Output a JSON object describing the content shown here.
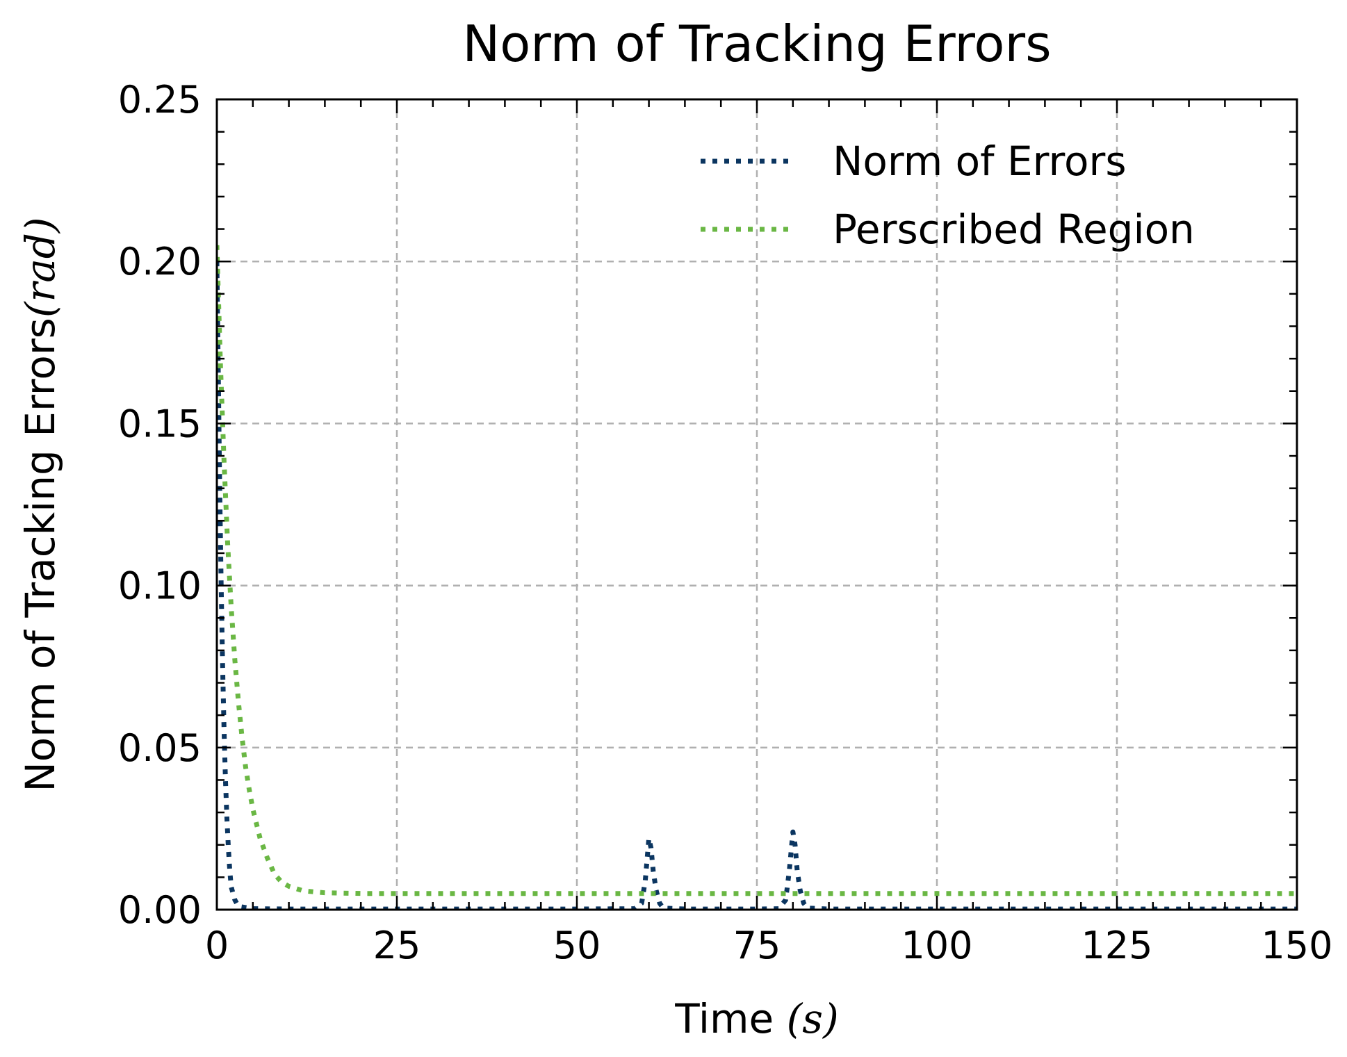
{
  "chart_data": {
    "type": "line",
    "title": "Norm of Tracking Errors",
    "xlabel_main": "Time ",
    "xlabel_math": "(s)",
    "ylabel_main": "Norm of Tracking Errors",
    "ylabel_math": "(rad)",
    "xlim": [
      0,
      150
    ],
    "ylim": [
      0,
      0.25
    ],
    "xticks": [
      0,
      25,
      50,
      75,
      100,
      125,
      150
    ],
    "xtick_labels": [
      "0",
      "25",
      "50",
      "75",
      "100",
      "125",
      "150"
    ],
    "yticks": [
      0,
      0.05,
      0.1,
      0.15,
      0.2,
      0.25
    ],
    "ytick_labels": [
      "0.00",
      "0.05",
      "0.10",
      "0.15",
      "0.20",
      "0.25"
    ],
    "grid": true,
    "legend_position": "top-right",
    "series": [
      {
        "name": "Norm of Errors",
        "color": "#0b3560",
        "style": "dotted",
        "x": [
          0,
          0.2,
          0.4,
          0.6,
          0.8,
          1.0,
          1.2,
          1.4,
          1.6,
          1.8,
          2.0,
          2.5,
          3,
          5,
          10,
          20,
          30,
          40,
          50,
          58,
          59,
          59.5,
          60,
          60.3,
          60.6,
          61,
          61.5,
          62,
          65,
          70,
          75,
          78,
          79,
          79.5,
          80,
          80.3,
          80.6,
          81,
          81.5,
          82,
          85,
          90,
          100,
          110,
          120,
          130,
          140,
          150
        ],
        "y": [
          0.2,
          0.165,
          0.13,
          0.1,
          0.075,
          0.055,
          0.04,
          0.028,
          0.019,
          0.012,
          0.007,
          0.003,
          0.001,
          0.0003,
          0.0002,
          0.0002,
          0.0002,
          0.0002,
          0.0002,
          0.0003,
          0.002,
          0.009,
          0.022,
          0.019,
          0.012,
          0.006,
          0.002,
          0.0005,
          0.0002,
          0.0002,
          0.0002,
          0.0003,
          0.003,
          0.012,
          0.024,
          0.02,
          0.012,
          0.006,
          0.002,
          0.0005,
          0.0002,
          0.0002,
          0.0002,
          0.0002,
          0.0002,
          0.0002,
          0.0002,
          0.0002
        ]
      },
      {
        "name": "Perscribed Region",
        "color": "#6ab744",
        "style": "dotted",
        "x": [
          0,
          0.5,
          1,
          1.5,
          2,
          2.5,
          3,
          3.5,
          4,
          4.5,
          5,
          6,
          7,
          8,
          9,
          10,
          12,
          15,
          20,
          30,
          50,
          75,
          100,
          125,
          150
        ],
        "y": [
          0.205,
          0.168,
          0.138,
          0.113,
          0.093,
          0.077,
          0.064,
          0.053,
          0.044,
          0.037,
          0.031,
          0.022,
          0.016,
          0.011,
          0.0085,
          0.0072,
          0.0058,
          0.0052,
          0.005,
          0.005,
          0.005,
          0.005,
          0.005,
          0.005,
          0.005
        ]
      }
    ]
  }
}
